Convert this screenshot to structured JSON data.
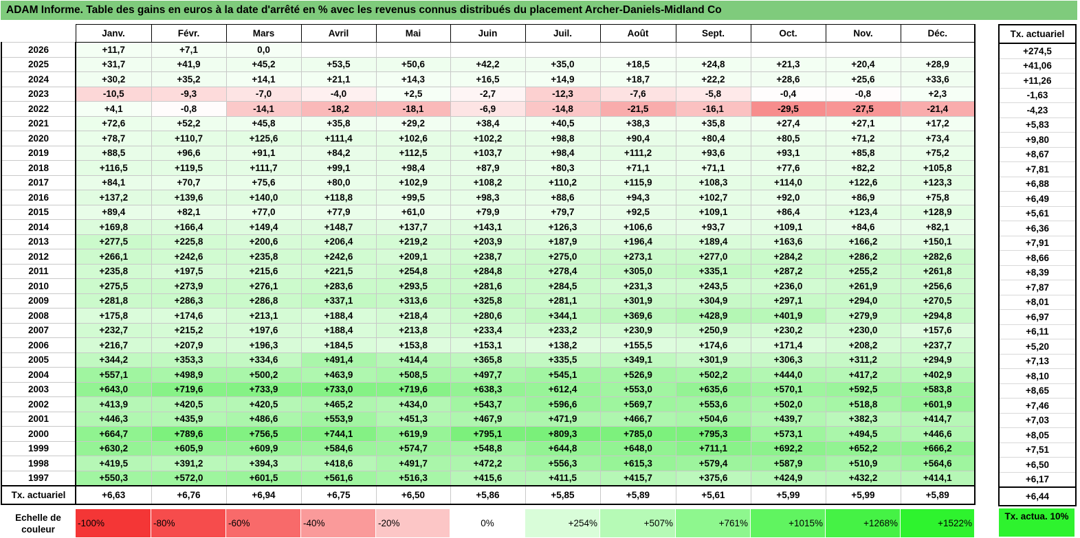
{
  "title": "ADAM Informe. Table des gains en euros à la date d'arrêté en % avec les revenus connus distribués du placement Archer-Daniels-Midland Co",
  "chart_data": {
    "type": "table",
    "columns": [
      "Janv.",
      "Févr.",
      "Mars",
      "Avril",
      "Mai",
      "Juin",
      "Juil.",
      "Août",
      "Sept.",
      "Oct.",
      "Nov.",
      "Déc."
    ],
    "side_header": "Tx. actuariel",
    "rows": [
      {
        "year": "2026",
        "values": [
          "+11,7",
          "+7,1",
          "0,0",
          "",
          "",
          "",
          "",
          "",
          "",
          "",
          "",
          ""
        ],
        "tx": "+274,5"
      },
      {
        "year": "2025",
        "values": [
          "+31,7",
          "+41,9",
          "+45,2",
          "+53,5",
          "+50,6",
          "+42,2",
          "+35,0",
          "+18,5",
          "+24,8",
          "+21,3",
          "+20,4",
          "+28,9"
        ],
        "tx": "+41,06"
      },
      {
        "year": "2024",
        "values": [
          "+30,2",
          "+35,2",
          "+14,1",
          "+21,1",
          "+14,3",
          "+16,5",
          "+14,9",
          "+18,7",
          "+22,2",
          "+28,6",
          "+25,6",
          "+33,6"
        ],
        "tx": "+11,26"
      },
      {
        "year": "2023",
        "values": [
          "-10,5",
          "-9,3",
          "-7,0",
          "-4,0",
          "+2,5",
          "-2,7",
          "-12,3",
          "-7,6",
          "-5,8",
          "-0,4",
          "-0,8",
          "+2,3"
        ],
        "tx": "-1,63"
      },
      {
        "year": "2022",
        "values": [
          "+4,1",
          "-0,8",
          "-14,1",
          "-18,2",
          "-18,1",
          "-6,9",
          "-14,8",
          "-21,5",
          "-16,1",
          "-29,5",
          "-27,5",
          "-21,4"
        ],
        "tx": "-4,23"
      },
      {
        "year": "2021",
        "values": [
          "+72,6",
          "+52,2",
          "+45,8",
          "+35,8",
          "+29,2",
          "+38,4",
          "+40,5",
          "+38,3",
          "+35,8",
          "+27,4",
          "+27,1",
          "+17,2"
        ],
        "tx": "+5,83"
      },
      {
        "year": "2020",
        "values": [
          "+78,7",
          "+110,7",
          "+125,6",
          "+111,4",
          "+102,6",
          "+102,2",
          "+98,8",
          "+90,4",
          "+80,4",
          "+80,5",
          "+71,2",
          "+73,4"
        ],
        "tx": "+9,80"
      },
      {
        "year": "2019",
        "values": [
          "+88,5",
          "+96,6",
          "+91,1",
          "+84,2",
          "+112,5",
          "+103,7",
          "+98,4",
          "+111,2",
          "+93,6",
          "+93,1",
          "+85,8",
          "+75,2"
        ],
        "tx": "+8,67"
      },
      {
        "year": "2018",
        "values": [
          "+116,5",
          "+119,5",
          "+111,7",
          "+99,1",
          "+98,4",
          "+87,9",
          "+80,3",
          "+71,1",
          "+71,1",
          "+77,6",
          "+82,2",
          "+105,8"
        ],
        "tx": "+7,81"
      },
      {
        "year": "2017",
        "values": [
          "+84,1",
          "+70,7",
          "+75,6",
          "+80,0",
          "+102,9",
          "+108,2",
          "+110,2",
          "+115,9",
          "+108,3",
          "+114,0",
          "+122,6",
          "+123,3"
        ],
        "tx": "+6,88"
      },
      {
        "year": "2016",
        "values": [
          "+137,2",
          "+139,6",
          "+140,0",
          "+118,8",
          "+99,5",
          "+98,3",
          "+88,6",
          "+94,3",
          "+102,7",
          "+92,0",
          "+86,9",
          "+75,8"
        ],
        "tx": "+6,49"
      },
      {
        "year": "2015",
        "values": [
          "+89,4",
          "+82,1",
          "+77,0",
          "+77,9",
          "+61,0",
          "+79,9",
          "+79,7",
          "+92,5",
          "+109,1",
          "+86,4",
          "+123,4",
          "+128,9"
        ],
        "tx": "+5,61"
      },
      {
        "year": "2014",
        "values": [
          "+169,8",
          "+166,4",
          "+149,4",
          "+148,7",
          "+137,7",
          "+143,1",
          "+126,3",
          "+106,6",
          "+93,7",
          "+109,1",
          "+84,6",
          "+82,1"
        ],
        "tx": "+6,36"
      },
      {
        "year": "2013",
        "values": [
          "+277,5",
          "+225,8",
          "+200,6",
          "+206,4",
          "+219,2",
          "+203,9",
          "+187,9",
          "+196,4",
          "+189,4",
          "+163,6",
          "+166,2",
          "+150,1"
        ],
        "tx": "+7,91"
      },
      {
        "year": "2012",
        "values": [
          "+266,1",
          "+242,6",
          "+235,8",
          "+242,6",
          "+209,1",
          "+238,7",
          "+275,0",
          "+273,1",
          "+277,0",
          "+284,2",
          "+286,2",
          "+282,6"
        ],
        "tx": "+8,66"
      },
      {
        "year": "2011",
        "values": [
          "+235,8",
          "+197,5",
          "+215,6",
          "+221,5",
          "+254,8",
          "+284,8",
          "+278,4",
          "+305,0",
          "+335,1",
          "+287,2",
          "+255,2",
          "+261,8"
        ],
        "tx": "+8,39"
      },
      {
        "year": "2010",
        "values": [
          "+275,5",
          "+273,9",
          "+276,1",
          "+283,6",
          "+293,5",
          "+281,6",
          "+284,5",
          "+231,3",
          "+243,5",
          "+236,0",
          "+261,9",
          "+256,6"
        ],
        "tx": "+7,87"
      },
      {
        "year": "2009",
        "values": [
          "+281,8",
          "+286,3",
          "+286,8",
          "+337,1",
          "+313,6",
          "+325,8",
          "+281,1",
          "+301,9",
          "+304,9",
          "+297,1",
          "+294,0",
          "+270,5"
        ],
        "tx": "+8,01"
      },
      {
        "year": "2008",
        "values": [
          "+175,8",
          "+174,6",
          "+213,1",
          "+188,4",
          "+218,4",
          "+280,6",
          "+344,1",
          "+369,6",
          "+428,9",
          "+401,9",
          "+279,9",
          "+294,8"
        ],
        "tx": "+6,97"
      },
      {
        "year": "2007",
        "values": [
          "+232,7",
          "+215,2",
          "+197,6",
          "+188,4",
          "+213,8",
          "+233,4",
          "+233,2",
          "+230,9",
          "+250,9",
          "+230,2",
          "+230,0",
          "+157,6"
        ],
        "tx": "+6,11"
      },
      {
        "year": "2006",
        "values": [
          "+216,7",
          "+207,9",
          "+196,3",
          "+184,5",
          "+153,8",
          "+153,1",
          "+138,2",
          "+155,5",
          "+174,6",
          "+171,4",
          "+208,2",
          "+237,7"
        ],
        "tx": "+5,20"
      },
      {
        "year": "2005",
        "values": [
          "+344,2",
          "+353,3",
          "+334,6",
          "+491,4",
          "+414,4",
          "+365,8",
          "+335,5",
          "+349,1",
          "+301,9",
          "+306,3",
          "+311,2",
          "+294,9"
        ],
        "tx": "+7,13"
      },
      {
        "year": "2004",
        "values": [
          "+557,1",
          "+498,9",
          "+500,2",
          "+463,9",
          "+508,5",
          "+497,7",
          "+545,1",
          "+526,9",
          "+502,2",
          "+444,0",
          "+417,2",
          "+402,9"
        ],
        "tx": "+8,10"
      },
      {
        "year": "2003",
        "values": [
          "+643,0",
          "+719,6",
          "+733,9",
          "+733,0",
          "+719,6",
          "+638,3",
          "+612,4",
          "+553,0",
          "+635,6",
          "+570,1",
          "+592,5",
          "+583,8"
        ],
        "tx": "+8,65"
      },
      {
        "year": "2002",
        "values": [
          "+413,9",
          "+420,5",
          "+420,5",
          "+465,2",
          "+434,0",
          "+543,7",
          "+596,6",
          "+569,7",
          "+553,6",
          "+502,0",
          "+518,8",
          "+601,9"
        ],
        "tx": "+7,46"
      },
      {
        "year": "2001",
        "values": [
          "+446,3",
          "+435,9",
          "+486,6",
          "+553,9",
          "+451,3",
          "+467,9",
          "+471,9",
          "+466,7",
          "+504,6",
          "+439,7",
          "+382,3",
          "+414,7"
        ],
        "tx": "+7,03"
      },
      {
        "year": "2000",
        "values": [
          "+664,7",
          "+789,6",
          "+756,5",
          "+744,1",
          "+619,9",
          "+795,1",
          "+809,3",
          "+785,0",
          "+795,3",
          "+573,1",
          "+494,5",
          "+446,6"
        ],
        "tx": "+8,05"
      },
      {
        "year": "1999",
        "values": [
          "+630,2",
          "+605,9",
          "+609,9",
          "+584,6",
          "+574,7",
          "+548,8",
          "+644,8",
          "+648,0",
          "+711,1",
          "+692,2",
          "+652,2",
          "+666,2"
        ],
        "tx": "+7,51"
      },
      {
        "year": "1998",
        "values": [
          "+419,5",
          "+391,2",
          "+394,3",
          "+418,6",
          "+491,7",
          "+472,2",
          "+556,3",
          "+615,3",
          "+579,4",
          "+587,9",
          "+510,9",
          "+564,6"
        ],
        "tx": "+6,50"
      },
      {
        "year": "1997",
        "values": [
          "+550,3",
          "+572,0",
          "+601,5",
          "+561,6",
          "+516,3",
          "+415,6",
          "+411,5",
          "+415,7",
          "+375,6",
          "+424,9",
          "+432,2",
          "+414,1"
        ],
        "tx": "+6,17"
      }
    ],
    "footer": {
      "label": "Tx. actuariel",
      "values": [
        "+6,63",
        "+6,76",
        "+6,94",
        "+6,75",
        "+6,50",
        "+5,86",
        "+5,85",
        "+5,89",
        "+5,61",
        "+5,99",
        "+5,99",
        "+5,89"
      ],
      "tx": "+6,44"
    },
    "legend": {
      "label": "Echelle de couleur",
      "items": [
        "-100%",
        "-80%",
        "-60%",
        "-40%",
        "-20%",
        "0%",
        "+254%",
        "+507%",
        "+761%",
        "+1015%",
        "+1268%",
        "+1522%"
      ],
      "colors": [
        "#f43636",
        "#f64c4c",
        "#f86a6a",
        "#fa9a9a",
        "#fcc6c6",
        "#ffffff",
        "#d9fdd9",
        "#b6fab6",
        "#8ef78e",
        "#60f460",
        "#45f245",
        "#2ef32e"
      ],
      "side_label": "Tx. actua. 10%",
      "side_color": "#2ef32e"
    }
  }
}
